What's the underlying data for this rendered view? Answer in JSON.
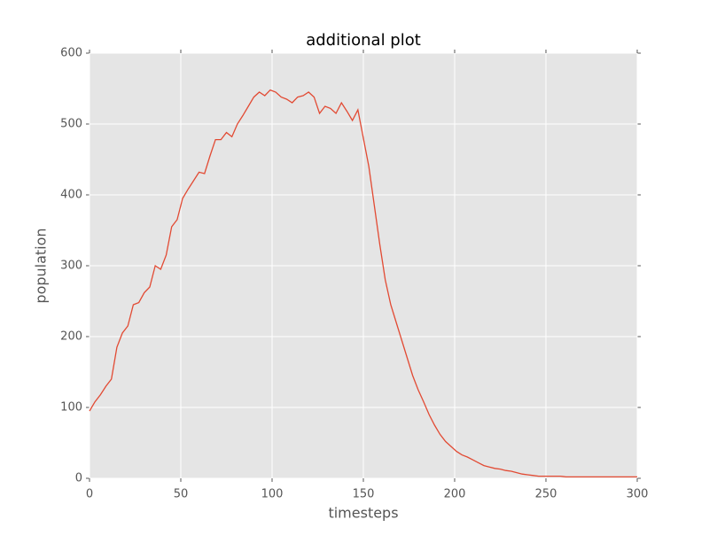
{
  "chart_data": {
    "type": "line",
    "title": "additional plot",
    "x_label": "timesteps",
    "y_label": "population",
    "x": [
      0,
      3,
      6,
      9,
      12,
      15,
      18,
      21,
      24,
      27,
      30,
      33,
      36,
      39,
      42,
      45,
      48,
      51,
      54,
      57,
      60,
      63,
      66,
      69,
      72,
      75,
      78,
      81,
      84,
      87,
      90,
      93,
      96,
      99,
      102,
      105,
      108,
      111,
      114,
      117,
      120,
      123,
      126,
      129,
      132,
      135,
      138,
      141,
      144,
      147,
      150,
      153,
      156,
      159,
      162,
      165,
      168,
      171,
      174,
      177,
      180,
      183,
      186,
      189,
      192,
      195,
      198,
      201,
      204,
      207,
      210,
      213,
      216,
      219,
      222,
      225,
      228,
      231,
      234,
      237,
      240,
      243,
      246,
      249,
      252,
      255,
      258,
      261,
      264,
      267,
      270,
      273,
      276,
      279,
      282,
      285,
      288,
      291,
      294,
      297,
      300
    ],
    "series": [
      {
        "name": "population",
        "color": "#e24a33",
        "values": [
          95,
          108,
          118,
          130,
          140,
          185,
          205,
          215,
          245,
          248,
          262,
          270,
          300,
          295,
          315,
          355,
          365,
          395,
          408,
          420,
          432,
          430,
          455,
          478,
          478,
          488,
          482,
          500,
          512,
          525,
          538,
          545,
          540,
          548,
          545,
          538,
          535,
          530,
          538,
          540,
          545,
          538,
          515,
          525,
          522,
          515,
          530,
          518,
          505,
          520,
          480,
          440,
          385,
          330,
          280,
          245,
          220,
          195,
          170,
          145,
          125,
          108,
          90,
          75,
          62,
          52,
          45,
          38,
          33,
          30,
          26,
          22,
          18,
          16,
          14,
          13,
          11,
          10,
          8,
          6,
          5,
          4,
          3,
          3,
          3,
          3,
          3,
          2,
          2,
          2,
          2,
          2,
          2,
          2,
          2,
          2,
          2,
          2,
          2,
          2,
          2
        ]
      }
    ],
    "xlim": [
      0,
      300
    ],
    "ylim": [
      0,
      600
    ],
    "xticks": [
      0,
      50,
      100,
      150,
      200,
      250,
      300
    ],
    "yticks": [
      0,
      100,
      200,
      300,
      400,
      500,
      600
    ],
    "grid": true
  }
}
